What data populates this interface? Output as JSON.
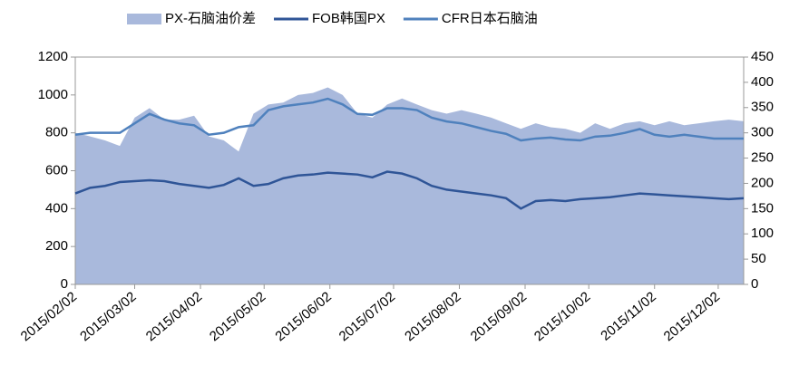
{
  "chart_data": {
    "type": "line",
    "x": [
      "2015/02/02",
      "2015/02/09",
      "2015/02/16",
      "2015/02/23",
      "2015/03/02",
      "2015/03/09",
      "2015/03/16",
      "2015/03/23",
      "2015/03/30",
      "2015/04/06",
      "2015/04/13",
      "2015/04/20",
      "2015/04/27",
      "2015/05/04",
      "2015/05/11",
      "2015/05/18",
      "2015/05/25",
      "2015/06/01",
      "2015/06/08",
      "2015/06/15",
      "2015/06/22",
      "2015/06/29",
      "2015/07/06",
      "2015/07/13",
      "2015/07/20",
      "2015/07/27",
      "2015/08/03",
      "2015/08/10",
      "2015/08/17",
      "2015/08/24",
      "2015/08/31",
      "2015/09/07",
      "2015/09/14",
      "2015/09/21",
      "2015/09/28",
      "2015/10/05",
      "2015/10/12",
      "2015/10/19",
      "2015/10/26",
      "2015/11/02",
      "2015/11/09",
      "2015/11/16",
      "2015/11/23",
      "2015/11/30",
      "2015/12/07",
      "2015/12/14"
    ],
    "series": [
      {
        "name": "PX-石脑油价差",
        "color": "#a9b9dc",
        "kind": "area",
        "axis": "y2",
        "values": [
          300,
          293,
          285,
          274,
          330,
          349,
          326,
          326,
          334,
          293,
          285,
          263,
          338,
          356,
          360,
          375,
          379,
          390,
          375,
          338,
          330,
          356,
          368,
          356,
          345,
          338,
          345,
          338,
          330,
          319,
          308,
          319,
          311,
          308,
          300,
          319,
          308,
          319,
          323,
          315,
          323,
          315,
          319,
          323,
          326,
          323
        ]
      },
      {
        "name": "FOB韩国PX",
        "color": "#2f5597",
        "kind": "line",
        "values": [
          480,
          510,
          520,
          540,
          545,
          550,
          545,
          530,
          520,
          510,
          525,
          560,
          520,
          530,
          560,
          575,
          580,
          590,
          585,
          580,
          565,
          595,
          585,
          560,
          520,
          500,
          490,
          480,
          470,
          455,
          400,
          440,
          445,
          440,
          450,
          455,
          460,
          470,
          480,
          475,
          470,
          465,
          460,
          455,
          450,
          455
        ]
      },
      {
        "name": "CFR日本石脑油",
        "color": "#4f81bd",
        "kind": "line",
        "values": [
          790,
          800,
          800,
          800,
          850,
          900,
          870,
          850,
          840,
          790,
          800,
          830,
          840,
          920,
          940,
          950,
          960,
          980,
          950,
          900,
          895,
          930,
          930,
          920,
          880,
          860,
          850,
          830,
          810,
          795,
          760,
          770,
          775,
          765,
          760,
          780,
          785,
          800,
          820,
          790,
          780,
          790,
          780,
          770,
          770,
          770
        ]
      }
    ],
    "xlim": [
      "2015/02/02",
      "2015/12/14"
    ],
    "xticks": [
      "2015/02/02",
      "2015/03/02",
      "2015/04/02",
      "2015/05/02",
      "2015/06/02",
      "2015/07/02",
      "2015/08/02",
      "2015/09/02",
      "2015/10/02",
      "2015/11/02",
      "2015/12/02"
    ],
    "ylim": [
      0,
      1200
    ],
    "yticks": [
      0,
      200,
      400,
      600,
      800,
      1000,
      1200
    ],
    "y2lim": [
      0,
      450
    ],
    "y2ticks": [
      0,
      50,
      100,
      150,
      200,
      250,
      300,
      350,
      400,
      450
    ],
    "legend": "top",
    "grid": false
  }
}
